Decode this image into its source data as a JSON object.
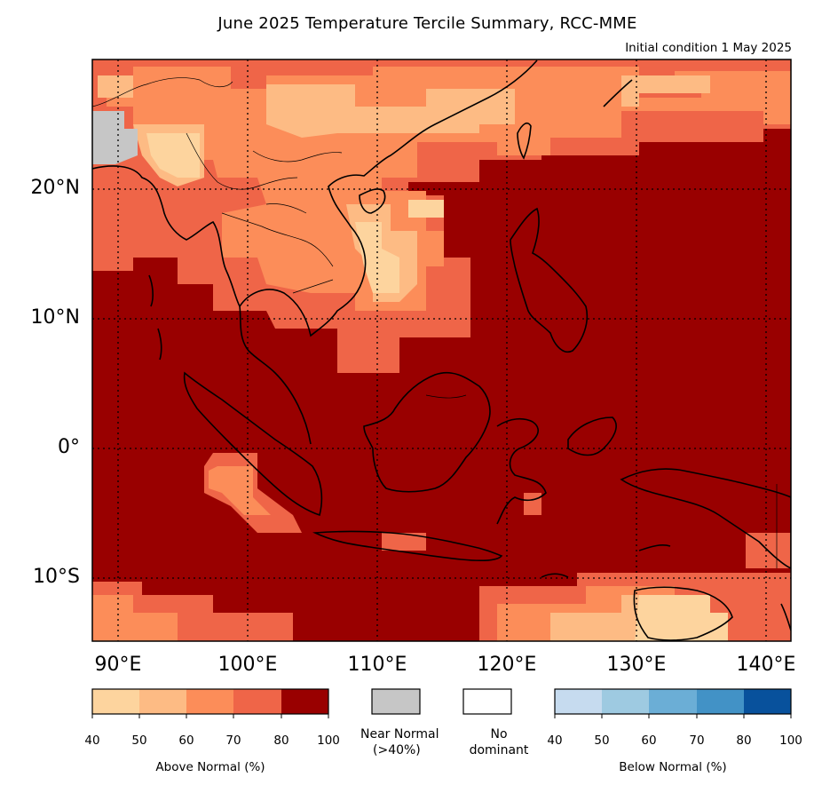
{
  "title": "June 2025 Temperature Tercile Summary, RCC-MME",
  "subtitle": "Initial condition 1 May 2025",
  "map": {
    "lat_labels": [
      "20°N",
      "10°N",
      "0°",
      "10°S"
    ],
    "lon_labels": [
      "90°E",
      "100°E",
      "110°E",
      "120°E",
      "130°E",
      "140°E"
    ],
    "dominant_category": "Above Normal",
    "dominant_probability": "80-100",
    "near_normal_area": "far north-west corner",
    "colors": {
      "above": [
        "#fdd49e",
        "#fdbb84",
        "#fc8d59",
        "#ef6548",
        "#990000"
      ],
      "near_normal": "#c6c6c6",
      "below": [
        "#c6dbef",
        "#9ecae1",
        "#6baed6",
        "#4292c6",
        "#08519c"
      ]
    }
  },
  "legend": {
    "above": {
      "label": "Above Normal (%)",
      "ticks": [
        "40",
        "50",
        "60",
        "70",
        "80",
        "100"
      ]
    },
    "near_normal": {
      "label_line1": "Near Normal",
      "label_line2": "(>40%)"
    },
    "no_dominant": {
      "label_line1": "No",
      "label_line2": "dominant"
    },
    "below": {
      "label": "Below Normal (%)",
      "ticks": [
        "40",
        "50",
        "60",
        "70",
        "80",
        "100"
      ]
    }
  }
}
